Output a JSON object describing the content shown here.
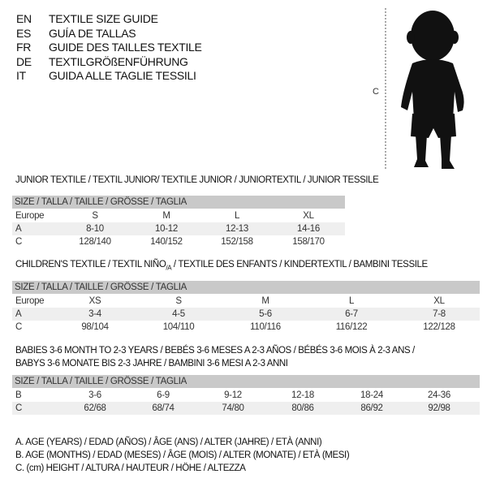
{
  "languages": [
    {
      "code": "EN",
      "text": "TEXTILE SIZE GUIDE"
    },
    {
      "code": "ES",
      "text": "GUÍA DE TALLAS"
    },
    {
      "code": "FR",
      "text": "GUIDE DES TAILLES TEXTILE"
    },
    {
      "code": "DE",
      "text": "TEXTILGRÖßENFÜHRUNG"
    },
    {
      "code": "IT",
      "text": "GUIDA ALLE TAGLIE TESSILI"
    }
  ],
  "figure": {
    "measure_label": "C"
  },
  "junior": {
    "title": "JUNIOR TEXTILE / TEXTIL JUNIOR/ TEXTILE JUNIOR / JUNIORTEXTIL / JUNIOR TESSILE",
    "header": "SIZE / TALLA / TAILLE / GRÖSSE / TAGLIA",
    "rows": [
      {
        "label": "Europe",
        "values": [
          "S",
          "M",
          "L",
          "XL"
        ]
      },
      {
        "label": "A",
        "values": [
          "8-10",
          "10-12",
          "12-13",
          "14-16"
        ]
      },
      {
        "label": "C",
        "values": [
          "128/140",
          "140/152",
          "152/158",
          "158/170"
        ]
      }
    ]
  },
  "children": {
    "title_pre": "CHILDREN'S TEXTILE / TEXTIL NIÑO",
    "title_sub": "/A",
    "title_post": " / TEXTILE DES ENFANTS / KINDERTEXTIL / BAMBINI TESSILE",
    "header": "SIZE / TALLA / TAILLE / GRÖSSE / TAGLIA",
    "rows": [
      {
        "label": "Europe",
        "values": [
          "XS",
          "S",
          "M",
          "L",
          "XL"
        ]
      },
      {
        "label": "A",
        "values": [
          "3-4",
          "4-5",
          "5-6",
          "6-7",
          "7-8"
        ]
      },
      {
        "label": "C",
        "values": [
          "98/104",
          "104/110",
          "110/116",
          "116/122",
          "122/128"
        ]
      }
    ]
  },
  "babies": {
    "title_line1": "BABIES 3-6 MONTH TO 2-3 YEARS / BEBÉS 3-6 MESES A 2-3 AÑOS / BÉBÉS 3-6 MOIS À 2-3 ANS /",
    "title_line2": "BABYS 3-6 MONATE BIS 2-3 JAHRE / BAMBINI 3-6 MESI A 2-3 ANNI",
    "header": "SIZE / TALLA / TAILLE / GRÖSSE / TAGLIA",
    "rows": [
      {
        "label": "B",
        "values": [
          "3-6",
          "6-9",
          "9-12",
          "12-18",
          "18-24",
          "24-36"
        ]
      },
      {
        "label": "C",
        "values": [
          "62/68",
          "68/74",
          "74/80",
          "80/86",
          "86/92",
          "92/98"
        ]
      }
    ]
  },
  "legend": [
    "A. AGE (YEARS) / EDAD (AÑOS) / ÂGE (ANS) / ALTER (JAHRE) / ETÀ (ANNI)",
    "B. AGE (MONTHS) / EDAD (MESES) / ÂGE (MOIS) / ALTER (MONATE) / ETÀ (MESI)",
    "C. (cm) HEIGHT / ALTURA / HAUTEUR / HÖHE / ALTEZZA"
  ]
}
